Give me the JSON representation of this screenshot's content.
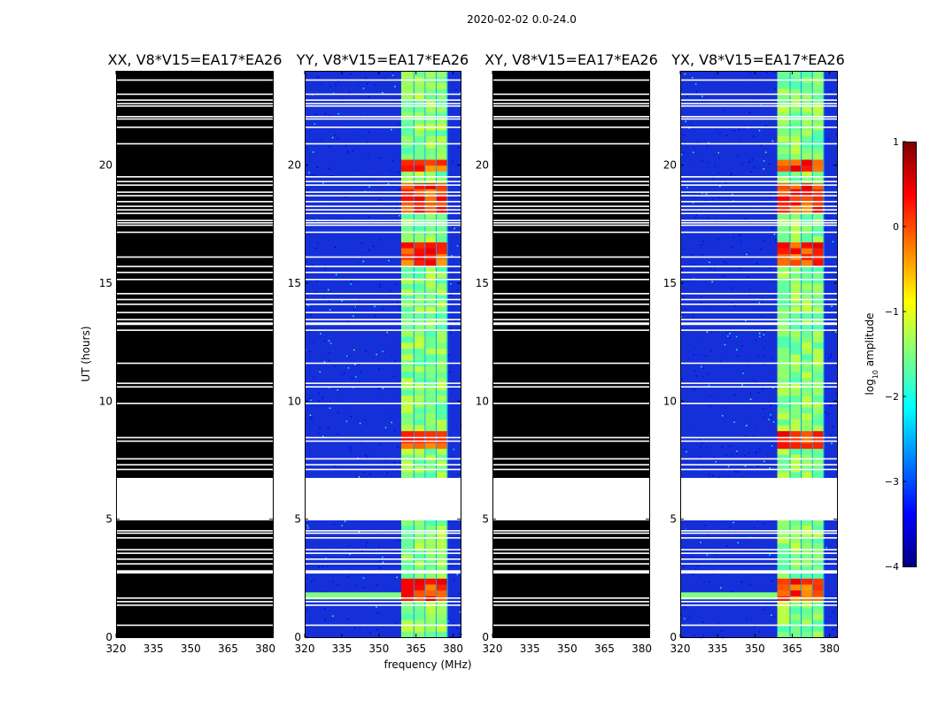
{
  "figure_title": "2020-02-02 0.0-24.0",
  "colors": {
    "flagged": "#000000",
    "gap": "#ffffff",
    "background_noise": "#1530d8",
    "colormap": [
      "#00007f",
      "#0000ff",
      "#007fff",
      "#00ffff",
      "#7fff7f",
      "#ffff00",
      "#ff7f00",
      "#ff0000",
      "#7f0000"
    ]
  },
  "chart_data": [
    {
      "type": "heatmap",
      "panel": "XX",
      "title": "XX, V8*V15=EA17*EA26",
      "xlabel": "",
      "ylabel": "UT (hours)",
      "xlim": [
        320,
        383
      ],
      "ylim": [
        0,
        24
      ],
      "xticks": [
        "320",
        "335",
        "350",
        "365",
        "380"
      ],
      "yticks": [
        "0",
        "5",
        "10",
        "15",
        "20"
      ],
      "fully_flagged": true
    },
    {
      "type": "heatmap",
      "panel": "YY",
      "title": "YY, V8*V15=EA17*EA26",
      "xlabel": "frequency (MHz)",
      "ylabel": "",
      "xlim": [
        320,
        383
      ],
      "ylim": [
        0,
        24
      ],
      "xticks": [
        "320",
        "335",
        "350",
        "365",
        "380"
      ],
      "yticks": [
        "0",
        "5",
        "10",
        "15",
        "20"
      ],
      "fully_flagged": false
    },
    {
      "type": "heatmap",
      "panel": "XY",
      "title": "XY, V8*V15=EA17*EA26",
      "xlabel": "",
      "ylabel": "",
      "xlim": [
        320,
        383
      ],
      "ylim": [
        0,
        24
      ],
      "xticks": [
        "320",
        "335",
        "350",
        "365",
        "380"
      ],
      "yticks": [
        "0",
        "5",
        "10",
        "15",
        "20"
      ],
      "fully_flagged": true
    },
    {
      "type": "heatmap",
      "panel": "YX",
      "title": "YX, V8*V15=EA17*EA26",
      "xlabel": "",
      "ylabel": "",
      "xlim": [
        320,
        383
      ],
      "ylim": [
        0,
        24
      ],
      "xticks": [
        "320",
        "335",
        "350",
        "365",
        "380"
      ],
      "yticks": [
        "0",
        "5",
        "10",
        "15",
        "20"
      ],
      "fully_flagged": false
    }
  ],
  "data_features": {
    "rfi_band_mhz": [
      359,
      378
    ],
    "rfi_subbands_mhz": [
      [
        359,
        364
      ],
      [
        364.3,
        368.5
      ],
      [
        368.8,
        373
      ],
      [
        373.3,
        377.5
      ]
    ],
    "missing_time_range_hours": [
      4.95,
      6.75
    ],
    "flag_gap_hours": [
      0.5,
      1.35,
      1.5,
      1.65,
      2.72,
      2.75,
      2.8,
      3.1,
      3.3,
      3.55,
      3.7,
      4.2,
      4.4,
      4.5,
      7.1,
      7.3,
      7.55,
      8.3,
      8.45,
      9.9,
      10.6,
      10.75,
      11.6,
      13.0,
      13.25,
      13.3,
      13.45,
      13.75,
      14.1,
      14.3,
      14.55,
      15.15,
      15.45,
      15.7,
      16.1,
      17.15,
      17.45,
      17.55,
      17.65,
      17.95,
      18.1,
      18.25,
      18.45,
      18.7,
      18.85,
      19.15,
      19.3,
      19.5,
      20.9,
      21.6,
      21.95,
      22.05,
      22.5,
      22.6,
      22.75,
      23.0,
      23.6
    ],
    "strong_rfi_time_ranges_hours": [
      [
        1.5,
        2.45
      ],
      [
        17.95,
        19.15
      ],
      [
        19.7,
        20.25
      ],
      [
        15.7,
        16.6
      ],
      [
        8.0,
        8.6
      ]
    ]
  },
  "colorbar": {
    "label": "log10 amplitude",
    "label_main": "log",
    "label_sub": "10",
    "label_tail": " amplitude",
    "range": [
      -4,
      1
    ],
    "ticks": [
      "1",
      "0",
      "−1",
      "−2",
      "−3",
      "−4"
    ]
  }
}
